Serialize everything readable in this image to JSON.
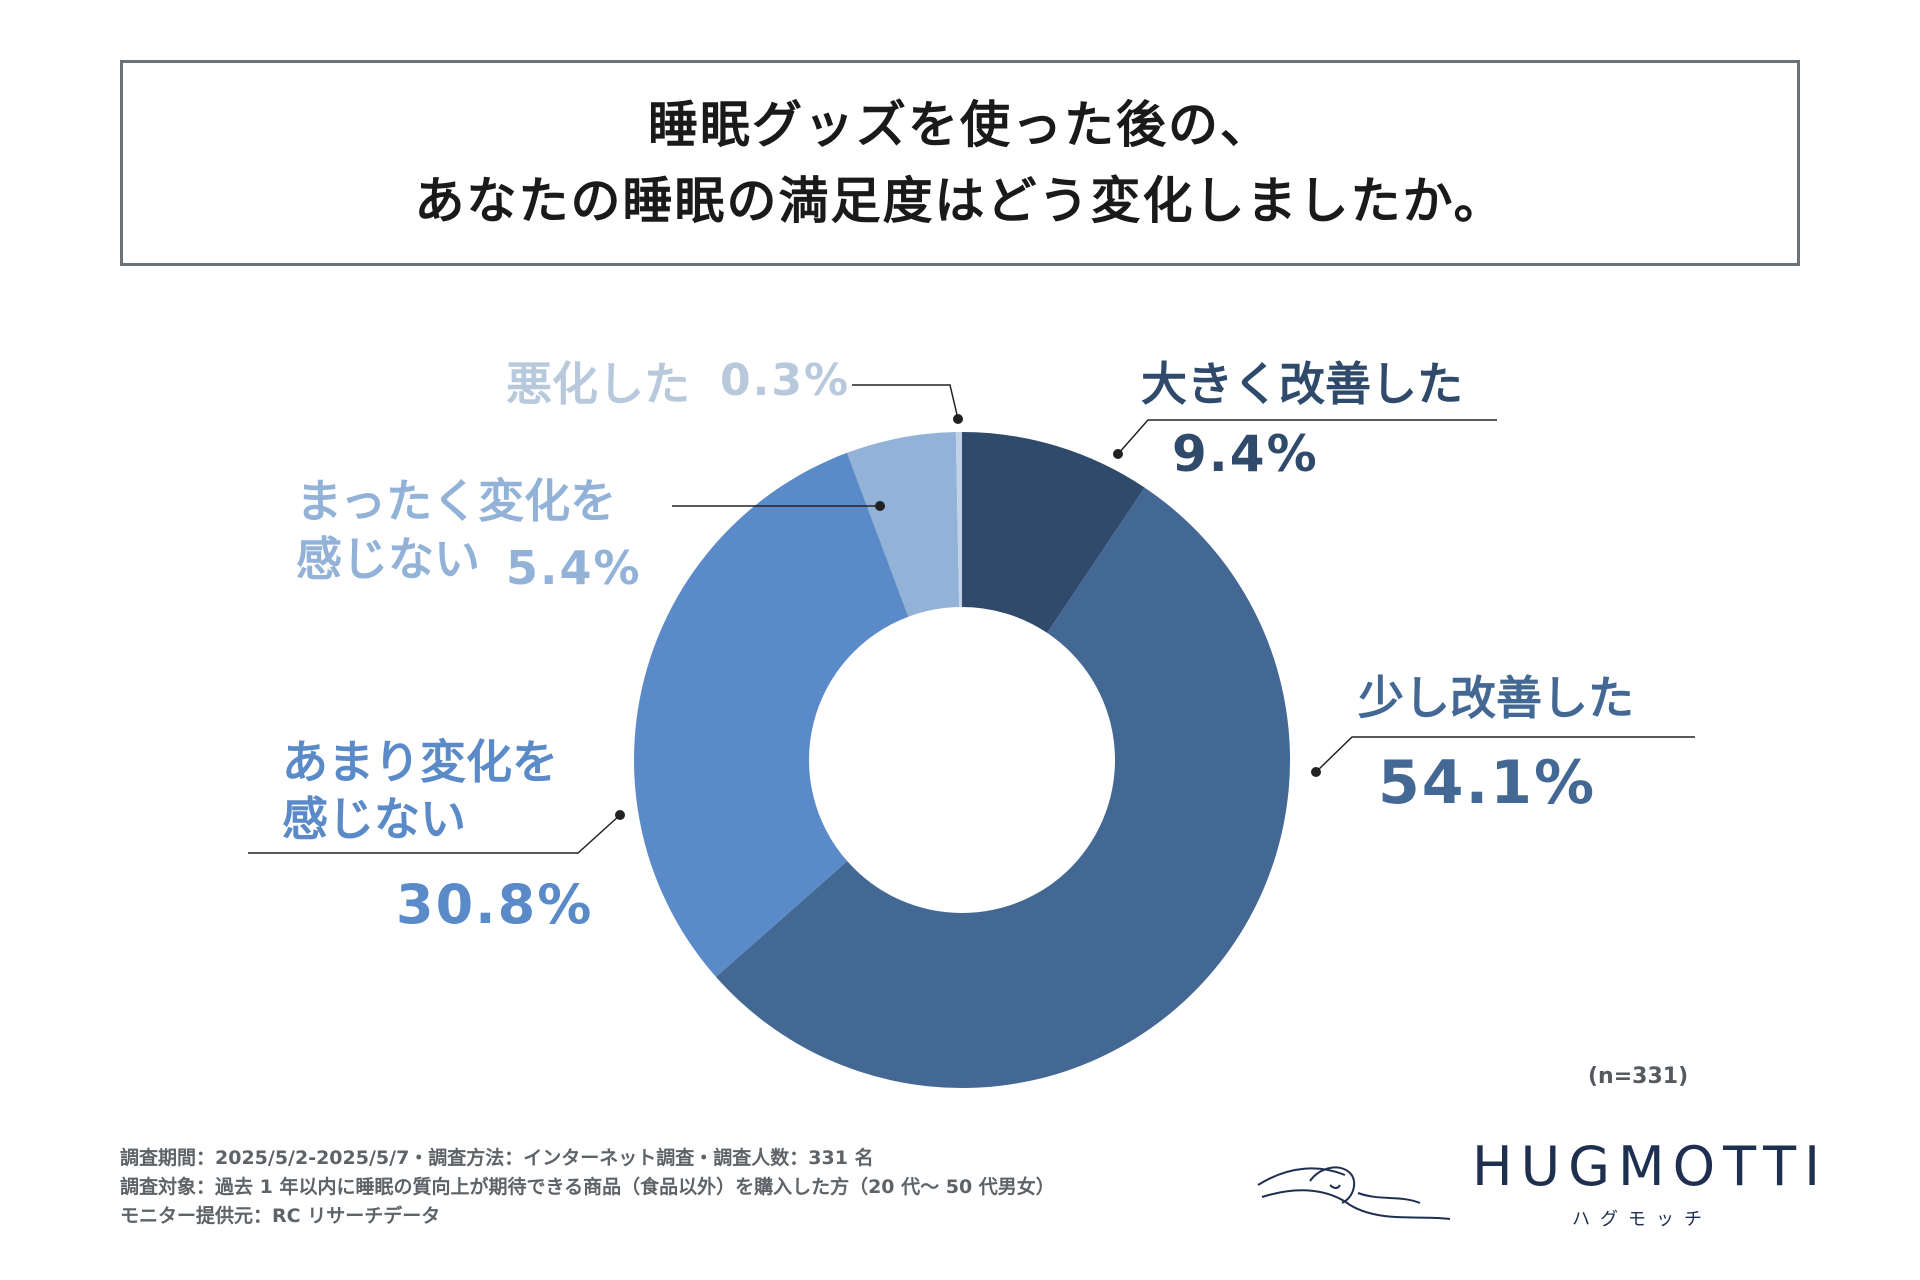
{
  "title": {
    "line1": "睡眠グッズを使った後の、",
    "line2": "あなたの睡眠の満足度はどう変化しましたか。"
  },
  "chart_data": {
    "type": "pie",
    "title": "睡眠グッズを使った後の、あなたの睡眠の満足度はどう変化しましたか。",
    "categories": [
      "大きく改善した",
      "少し改善した",
      "あまり変化を感じない",
      "まったく変化を感じない",
      "悪化した"
    ],
    "values": [
      9.4,
      54.1,
      30.8,
      5.4,
      0.3
    ],
    "labels": [
      "9.4%",
      "54.1%",
      "30.8%",
      "5.4%",
      "0.3%"
    ],
    "colors": [
      "#2f4a6b",
      "#436894",
      "#5b8ac8",
      "#93b2d8",
      "#c2d2e6"
    ],
    "label_colors": [
      "#2f4a6b",
      "#436894",
      "#5b8ac8",
      "#93b2d8",
      "#b9c9dc"
    ],
    "donut": true
  },
  "labels": {
    "s0_cat": "大きく改善した",
    "s1_cat": "少し改善した",
    "s2_cat_l1": "あまり変化を",
    "s2_cat_l2": "感じない",
    "s3_cat_l1": "まったく変化を",
    "s3_cat_l2": "感じない",
    "s4_cat": "悪化した"
  },
  "sample_size": "(n=331)",
  "notes": {
    "line1": "調査期間：2025/5/2-2025/5/7・調査方法：インターネット調査・調査人数：331 名",
    "line2": "調査対象：過去 1 年以内に睡眠の質向上が期待できる商品（食品以外）を購入した方（20 代〜 50 代男女）",
    "line3": "モニター提供元：RC リサーチデータ"
  },
  "logo": {
    "name": "HUGMOTTI",
    "kana": "ハグモッチ",
    "icon": "sleeping-person-icon"
  }
}
